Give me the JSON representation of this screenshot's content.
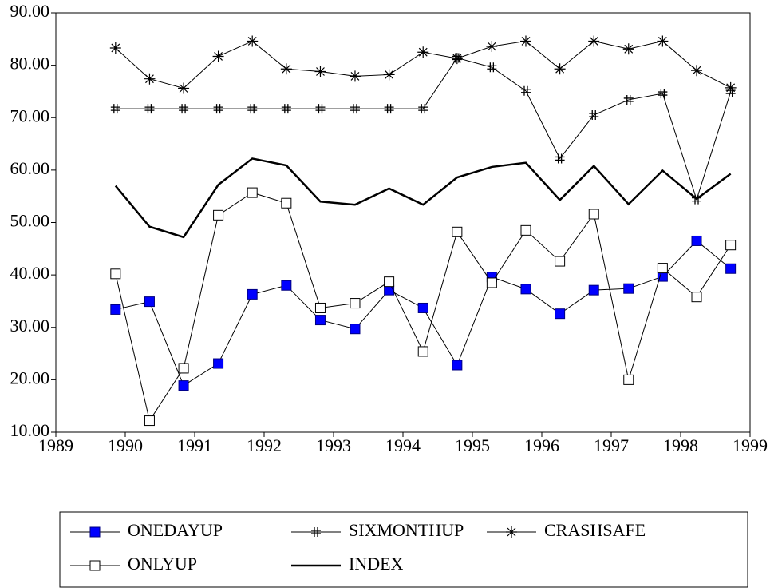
{
  "chart_data": {
    "type": "line",
    "x": [
      1989.86,
      1990.35,
      1990.84,
      1991.34,
      1991.83,
      1992.32,
      1992.81,
      1993.31,
      1993.8,
      1994.29,
      1994.78,
      1995.28,
      1995.77,
      1996.26,
      1996.75,
      1997.25,
      1997.74,
      1998.23,
      1998.72
    ],
    "xlim": [
      1989,
      1999
    ],
    "xticks": [
      1989,
      1990,
      1991,
      1992,
      1993,
      1994,
      1995,
      1996,
      1997,
      1998,
      1999
    ],
    "ylim": [
      10,
      90
    ],
    "yticks": [
      {
        "value": 10,
        "label": "10.00"
      },
      {
        "value": 20,
        "label": "20.00"
      },
      {
        "value": 30,
        "label": "30.00"
      },
      {
        "value": 40,
        "label": "40.00"
      },
      {
        "value": 50,
        "label": "50.00"
      },
      {
        "value": 60,
        "label": "60.00"
      },
      {
        "value": 70,
        "label": "70.00"
      },
      {
        "value": 80,
        "label": "80.00"
      },
      {
        "value": 90,
        "label": "90.00"
      }
    ],
    "legend": "bottom",
    "series": [
      {
        "name": "ONEDAYUP",
        "color": "#000000",
        "marker": "filled-square",
        "marker_color": "#0000ff",
        "line_width": 1,
        "values": [
          33.4,
          34.9,
          18.9,
          23.1,
          36.3,
          38.0,
          31.4,
          29.7,
          37.1,
          33.7,
          22.8,
          39.6,
          37.3,
          32.6,
          37.1,
          37.4,
          39.7,
          46.5,
          41.2
        ]
      },
      {
        "name": "SIXMONTHUP",
        "color": "#000000",
        "marker": "hash",
        "marker_color": "#000000",
        "line_width": 1,
        "values": [
          71.7,
          71.7,
          71.7,
          71.7,
          71.7,
          71.7,
          71.7,
          71.7,
          71.7,
          71.7,
          81.4,
          79.6,
          75.1,
          62.2,
          70.5,
          73.4,
          74.6,
          54.4,
          74.9
        ]
      },
      {
        "name": "CRASHSAFE",
        "color": "#000000",
        "marker": "asterisk",
        "marker_color": "#000000",
        "line_width": 1,
        "values": [
          83.3,
          77.4,
          75.6,
          81.7,
          84.6,
          79.3,
          78.8,
          77.9,
          78.2,
          82.5,
          81.3,
          83.6,
          84.6,
          79.3,
          84.6,
          83.1,
          84.6,
          79.0,
          75.7
        ]
      },
      {
        "name": "ONLYUP",
        "color": "#000000",
        "marker": "open-square",
        "marker_color": "#ffffff",
        "line_width": 1,
        "values": [
          40.2,
          12.2,
          22.2,
          51.4,
          55.7,
          53.7,
          33.7,
          34.6,
          38.7,
          25.4,
          48.2,
          38.5,
          48.5,
          42.6,
          51.6,
          20.0,
          41.3,
          35.8,
          45.7
        ]
      },
      {
        "name": "INDEX",
        "color": "#000000",
        "marker": "none",
        "marker_color": "#000000",
        "line_width": 2.5,
        "values": [
          57.0,
          49.2,
          47.2,
          57.2,
          62.2,
          60.9,
          54.0,
          53.4,
          56.5,
          53.4,
          58.6,
          60.6,
          61.4,
          54.3,
          60.8,
          53.5,
          59.9,
          54.5,
          59.3
        ]
      }
    ]
  }
}
